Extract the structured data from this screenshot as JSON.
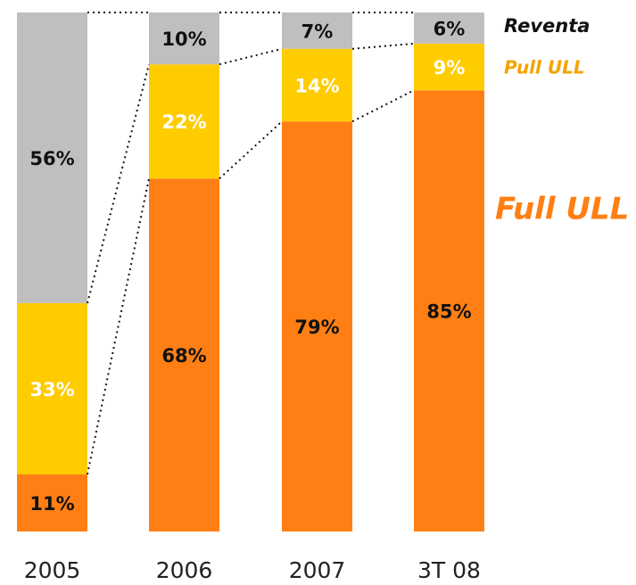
{
  "chart_data": {
    "type": "stacked_bar",
    "categories": [
      "2005",
      "2006",
      "2007",
      "3T 08"
    ],
    "ylim": [
      0,
      100
    ],
    "series": [
      {
        "name": "Full ULL",
        "color": "#ff7f14",
        "label_color": "#111111",
        "legend_color": "#ff7f14",
        "values": [
          11,
          68,
          79,
          85
        ],
        "value_labels": [
          "11%",
          "68%",
          "79%",
          "85%"
        ]
      },
      {
        "name": "Pull ULL",
        "color": "#ffcc00",
        "label_color": "#ffffff",
        "legend_color": "#f5a300",
        "values": [
          33,
          22,
          14,
          9
        ],
        "value_labels": [
          "33%",
          "22%",
          "14%",
          "9%"
        ]
      },
      {
        "name": "Reventa",
        "color": "#bfbfbf",
        "label_color": "#111111",
        "legend_color": "#111111",
        "values": [
          56,
          10,
          7,
          6
        ],
        "value_labels": [
          "56%",
          "10%",
          "7%",
          "6%"
        ]
      }
    ]
  }
}
